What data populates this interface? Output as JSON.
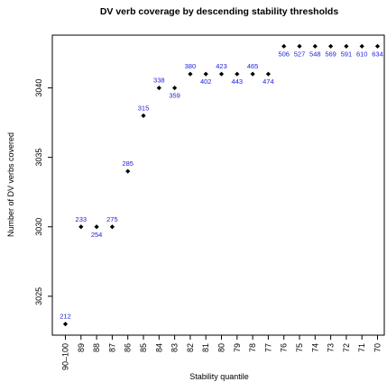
{
  "chart_data": {
    "type": "scatter",
    "title": "DV verb coverage by descending stability thresholds",
    "xlabel": "Stability quantile",
    "ylabel": "Number of DV verbs covered",
    "categories": [
      "90–100",
      "89",
      "88",
      "87",
      "86",
      "85",
      "84",
      "83",
      "82",
      "81",
      "80",
      "79",
      "78",
      "77",
      "76",
      "75",
      "74",
      "73",
      "72",
      "71",
      "70"
    ],
    "values": [
      3023,
      3030,
      3030,
      3030,
      3034,
      3038,
      3040,
      3040,
      3041,
      3041,
      3041,
      3041,
      3041,
      3041,
      3043,
      3043,
      3043,
      3043,
      3043,
      3043,
      3043
    ],
    "point_labels": [
      "212",
      "233",
      "254",
      "275",
      "285",
      "315",
      "338",
      "359",
      "380",
      "402",
      "423",
      "443",
      "465",
      "474",
      "506",
      "527",
      "548",
      "569",
      "591",
      "610",
      "634"
    ],
    "label_position": [
      "above",
      "above",
      "below",
      "above",
      "above",
      "above",
      "above",
      "below",
      "above",
      "below",
      "above",
      "below",
      "above",
      "below",
      "below",
      "below",
      "below",
      "below",
      "below",
      "below",
      "below"
    ],
    "y_ticks": [
      3025,
      3030,
      3035,
      3040
    ],
    "ylim": [
      3022.2,
      3043.8
    ],
    "grid": false,
    "point_color": "#000000",
    "label_color": "#2020dd"
  }
}
